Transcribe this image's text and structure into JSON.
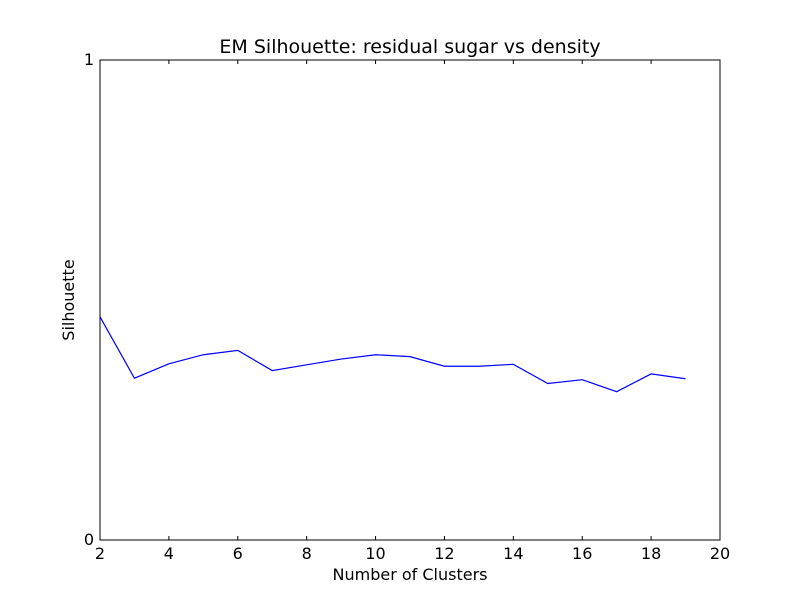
{
  "chart_data": {
    "type": "line",
    "title": "EM Silhouette: residual sugar vs density",
    "xlabel": "Number of Clusters",
    "ylabel": "Silhouette",
    "xlim": [
      2,
      20
    ],
    "ylim": [
      0,
      1
    ],
    "x_ticks": [
      2,
      4,
      6,
      8,
      10,
      12,
      14,
      16,
      18,
      20
    ],
    "y_ticks": [
      0,
      1
    ],
    "grid": false,
    "series": [
      {
        "x": [
          2,
          3,
          4,
          5,
          6,
          7,
          8,
          9,
          10,
          11,
          12,
          13,
          14,
          15,
          16,
          17,
          18,
          19
        ],
        "values": [
          0.465,
          0.337,
          0.367,
          0.386,
          0.395,
          0.353,
          0.365,
          0.377,
          0.386,
          0.382,
          0.362,
          0.362,
          0.366,
          0.326,
          0.334,
          0.309,
          0.346,
          0.336
        ],
        "color": "#0000ff"
      }
    ]
  }
}
